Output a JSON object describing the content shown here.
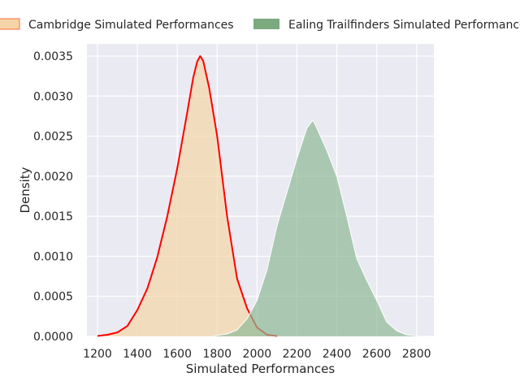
{
  "chart_data": {
    "type": "area",
    "title": "",
    "xlabel": "Simulated Performances",
    "ylabel": "Density",
    "xlim": [
      1150,
      2900
    ],
    "ylim": [
      0,
      0.0035
    ],
    "xticks": [
      1200,
      1400,
      1600,
      1800,
      2000,
      2200,
      2400,
      2600,
      2800
    ],
    "xtick_labels": [
      "1200",
      "1400",
      "1600",
      "1800",
      "2000",
      "2200",
      "2400",
      "2600",
      "2800"
    ],
    "yticks": [
      0,
      0.0005,
      0.001,
      0.0015,
      0.002,
      0.0025,
      0.003,
      0.0035
    ],
    "ytick_labels": [
      "0.0000",
      "0.0005",
      "0.0010",
      "0.0015",
      "0.0020",
      "0.0025",
      "0.0030",
      "0.0035"
    ],
    "grid": true,
    "legend_position": "top",
    "series": [
      {
        "name": "Cambridge Simulated Performances",
        "fill_color": "#f5d5a8",
        "line_color": "#ff0000",
        "x": [
          1200,
          1250,
          1300,
          1350,
          1400,
          1450,
          1500,
          1550,
          1600,
          1650,
          1680,
          1700,
          1715,
          1730,
          1760,
          1800,
          1850,
          1900,
          1950,
          2000,
          2050,
          2100
        ],
        "y": [
          5e-06,
          2e-05,
          5e-05,
          0.00013,
          0.00033,
          0.0006,
          0.00099,
          0.0015,
          0.0021,
          0.0028,
          0.00323,
          0.00343,
          0.0035,
          0.00344,
          0.0031,
          0.0025,
          0.0015,
          0.00072,
          0.00035,
          0.00011,
          2e-05,
          5e-06
        ]
      },
      {
        "name": "Ealing Trailfinders Simulated Performances",
        "fill_color": "#8fb996",
        "line_color": "#ffffff",
        "x": [
          1780,
          1850,
          1900,
          1950,
          2000,
          2050,
          2100,
          2150,
          2200,
          2250,
          2280,
          2300,
          2350,
          2400,
          2450,
          2500,
          2550,
          2600,
          2650,
          2700,
          2750,
          2810
        ],
        "y": [
          5e-06,
          3e-05,
          8e-05,
          0.00022,
          0.00045,
          0.00083,
          0.00138,
          0.0018,
          0.00222,
          0.0026,
          0.0027,
          0.0026,
          0.00232,
          0.002,
          0.0015,
          0.00097,
          0.0007,
          0.00045,
          0.00018,
          7e-05,
          2e-05,
          5e-06
        ]
      }
    ]
  }
}
